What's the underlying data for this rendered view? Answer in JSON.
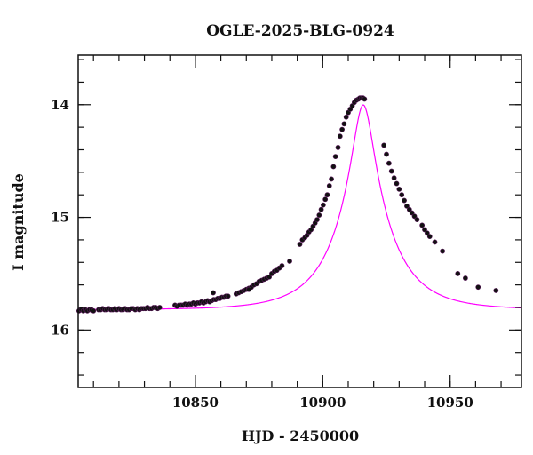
{
  "chart_data": {
    "type": "scatter",
    "title": "OGLE-2025-BLG-0924",
    "xlabel": "HJD - 2450000",
    "ylabel": "I magnitude",
    "xlim": [
      10804,
      10978
    ],
    "ylim": [
      16.51,
      13.56
    ],
    "y_inverted": true,
    "grid": false,
    "x_major_ticks": [
      10850,
      10900,
      10950
    ],
    "x_tick_labels": [
      "10850",
      "10900",
      "10950"
    ],
    "x_minor_step": 10,
    "y_major_ticks": [
      14,
      15,
      16
    ],
    "y_tick_labels": [
      "14",
      "15",
      "16"
    ],
    "y_minor_step": 0.2,
    "model_color": "#ff00ff",
    "point_color": "#111111",
    "model": {
      "name": "",
      "t0": 10915.9,
      "tE": 20.0,
      "u0": 0.19,
      "I_base": 15.82
    },
    "series": [
      {
        "name": "",
        "x": [
          10804.3,
          10805.2,
          10806.0,
          10806.8,
          10807.6,
          10808.4,
          10809.2,
          10810.0,
          10812.0,
          10812.8,
          10813.6,
          10814.4,
          10815.2,
          10816.0,
          10816.8,
          10817.6,
          10818.4,
          10819.2,
          10820.0,
          10820.8,
          10821.6,
          10822.4,
          10823.2,
          10824.0,
          10824.8,
          10825.6,
          10826.4,
          10827.2,
          10828.0,
          10828.8,
          10829.6,
          10830.4,
          10831.2,
          10832.0,
          10832.8,
          10833.6,
          10834.4,
          10835.2,
          10836.0,
          10842.0,
          10842.8,
          10843.6,
          10844.4,
          10845.2,
          10846.0,
          10846.8,
          10847.6,
          10848.4,
          10849.2,
          10850.0,
          10850.8,
          10851.6,
          10852.4,
          10853.2,
          10854.0,
          10854.8,
          10855.6,
          10856.4,
          10857.2,
          10858.0,
          10858.8,
          10859.6,
          10860.4,
          10861.2,
          10862.0,
          10862.8,
          10866.0,
          10867.0,
          10868.0,
          10869.0,
          10870.0,
          10871.0,
          10872.0,
          10873.0,
          10874.0,
          10875.0,
          10876.0,
          10877.0,
          10878.0,
          10879.0,
          10880.0,
          10881.0,
          10882.0,
          10883.0,
          10884.0,
          10887.0,
          10891.0,
          10892.0,
          10893.0,
          10893.8,
          10894.6,
          10895.4,
          10896.2,
          10897.0,
          10897.8,
          10898.6,
          10899.4,
          10900.2,
          10901.0,
          10901.8,
          10902.6,
          10903.4,
          10904.2,
          10905.0,
          10906.0,
          10906.8,
          10907.6,
          10908.4,
          10909.2,
          10910.0,
          10910.8,
          10911.6,
          10912.4,
          10913.2,
          10914.0,
          10914.6,
          10915.2,
          10915.8,
          10916.4,
          10924.0,
          10925.0,
          10926.0,
          10927.0,
          10928.0,
          10929.0,
          10930.0,
          10931.0,
          10932.0,
          10933.0,
          10934.0,
          10935.0,
          10936.0,
          10937.0,
          10939.0,
          10940.0,
          10941.0,
          10942.0,
          10944.0,
          10947.0,
          10953.0,
          10956.0,
          10961.0,
          10968.0,
          10857.0,
          10871.0
        ],
        "y": [
          15.83,
          15.82,
          15.83,
          15.82,
          15.83,
          15.82,
          15.82,
          15.83,
          15.82,
          15.82,
          15.81,
          15.82,
          15.82,
          15.81,
          15.82,
          15.82,
          15.81,
          15.82,
          15.81,
          15.82,
          15.82,
          15.81,
          15.82,
          15.82,
          15.81,
          15.81,
          15.82,
          15.81,
          15.82,
          15.81,
          15.81,
          15.81,
          15.8,
          15.81,
          15.81,
          15.8,
          15.8,
          15.81,
          15.8,
          15.78,
          15.79,
          15.78,
          15.78,
          15.78,
          15.77,
          15.78,
          15.77,
          15.77,
          15.76,
          15.77,
          15.76,
          15.76,
          15.75,
          15.76,
          15.75,
          15.74,
          15.75,
          15.74,
          15.73,
          15.73,
          15.72,
          15.72,
          15.71,
          15.71,
          15.7,
          15.7,
          15.68,
          15.67,
          15.66,
          15.65,
          15.64,
          15.63,
          15.62,
          15.6,
          15.59,
          15.57,
          15.56,
          15.55,
          15.54,
          15.53,
          15.5,
          15.48,
          15.47,
          15.45,
          15.43,
          15.39,
          15.24,
          15.2,
          15.18,
          15.16,
          15.13,
          15.11,
          15.08,
          15.05,
          15.02,
          14.98,
          14.93,
          14.89,
          14.84,
          14.8,
          14.72,
          14.66,
          14.55,
          14.46,
          14.38,
          14.28,
          14.22,
          14.17,
          14.11,
          14.07,
          14.04,
          14.01,
          13.98,
          13.96,
          13.95,
          13.94,
          13.94,
          13.94,
          13.95,
          14.36,
          14.44,
          14.52,
          14.59,
          14.65,
          14.7,
          14.75,
          14.8,
          14.85,
          14.9,
          14.93,
          14.96,
          14.99,
          15.02,
          15.07,
          15.11,
          15.14,
          15.17,
          15.22,
          15.3,
          15.5,
          15.54,
          15.62,
          15.65,
          15.67,
          15.64
        ]
      }
    ]
  }
}
